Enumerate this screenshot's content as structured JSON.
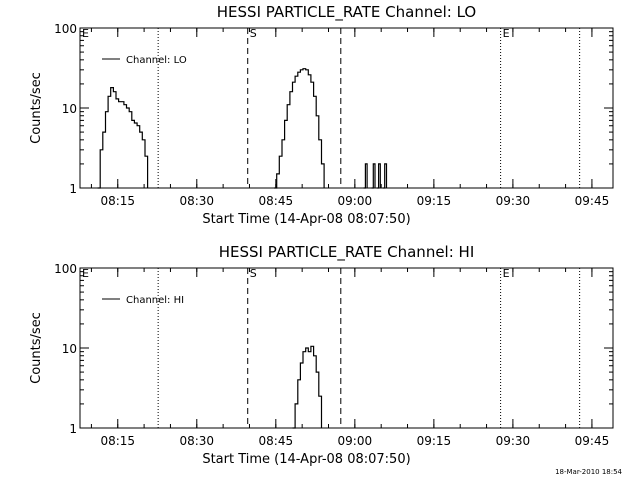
{
  "chart_data": [
    {
      "type": "line",
      "title": "HESSI PARTICLE_RATE Channel: LO",
      "xlabel": "Start Time (14-Apr-08 08:07:50)",
      "ylabel": "Counts/sec",
      "y_scale": "log",
      "ylim": [
        1,
        100
      ],
      "y_ticks": [
        "1",
        "10",
        "100"
      ],
      "x_ticks": [
        "08:15",
        "08:30",
        "08:45",
        "09:00",
        "09:15",
        "09:30",
        "09:45"
      ],
      "grid": false,
      "legend": {
        "position": "top-left",
        "entries": [
          "Channel: LO"
        ]
      },
      "markers": [
        {
          "label": "E",
          "time": "08:07:50",
          "style": "none"
        },
        {
          "label": "",
          "time": "08:22:40",
          "style": "dotted"
        },
        {
          "label": "S",
          "time": "08:39:40",
          "style": "dashed"
        },
        {
          "label": "",
          "time": "08:57:20",
          "style": "dashed"
        },
        {
          "label": "E",
          "time": "09:27:40",
          "style": "dotted"
        },
        {
          "label": "",
          "time": "09:42:40",
          "style": "dotted"
        }
      ],
      "series": [
        {
          "name": "Channel: LO",
          "segments": [
            [
              {
                "x": "08:11:10",
                "y": 1
              },
              {
                "x": "08:11:40",
                "y": 3
              },
              {
                "x": "08:12:10",
                "y": 5
              },
              {
                "x": "08:12:40",
                "y": 9
              },
              {
                "x": "08:13:10",
                "y": 14
              },
              {
                "x": "08:13:40",
                "y": 18
              },
              {
                "x": "08:14:10",
                "y": 16
              },
              {
                "x": "08:14:40",
                "y": 13
              },
              {
                "x": "08:15:10",
                "y": 12
              },
              {
                "x": "08:15:40",
                "y": 12
              },
              {
                "x": "08:16:10",
                "y": 11
              },
              {
                "x": "08:16:40",
                "y": 10
              },
              {
                "x": "08:17:10",
                "y": 9
              },
              {
                "x": "08:17:40",
                "y": 7
              },
              {
                "x": "08:18:10",
                "y": 6.5
              },
              {
                "x": "08:18:40",
                "y": 6
              },
              {
                "x": "08:19:10",
                "y": 5
              },
              {
                "x": "08:19:40",
                "y": 4
              },
              {
                "x": "08:20:10",
                "y": 2.5
              },
              {
                "x": "08:20:40",
                "y": 1
              }
            ],
            [
              {
                "x": "08:44:40",
                "y": 1
              },
              {
                "x": "08:45:10",
                "y": 1.5
              },
              {
                "x": "08:45:40",
                "y": 2.5
              },
              {
                "x": "08:46:10",
                "y": 4
              },
              {
                "x": "08:46:40",
                "y": 7
              },
              {
                "x": "08:47:10",
                "y": 11
              },
              {
                "x": "08:47:40",
                "y": 16
              },
              {
                "x": "08:48:10",
                "y": 21
              },
              {
                "x": "08:48:40",
                "y": 25
              },
              {
                "x": "08:49:10",
                "y": 28
              },
              {
                "x": "08:49:40",
                "y": 30
              },
              {
                "x": "08:50:10",
                "y": 31
              },
              {
                "x": "08:50:40",
                "y": 30
              },
              {
                "x": "08:51:10",
                "y": 26
              },
              {
                "x": "08:51:40",
                "y": 21
              },
              {
                "x": "08:52:10",
                "y": 14
              },
              {
                "x": "08:52:40",
                "y": 8
              },
              {
                "x": "08:53:10",
                "y": 4
              },
              {
                "x": "08:53:40",
                "y": 2
              },
              {
                "x": "08:54:10",
                "y": 1
              }
            ],
            [
              {
                "x": "09:01:40",
                "y": 1
              },
              {
                "x": "09:02:00",
                "y": 2
              },
              {
                "x": "09:02:20",
                "y": 1
              }
            ],
            [
              {
                "x": "09:03:10",
                "y": 1
              },
              {
                "x": "09:03:30",
                "y": 2
              },
              {
                "x": "09:03:50",
                "y": 1
              }
            ],
            [
              {
                "x": "09:04:10",
                "y": 1
              },
              {
                "x": "09:04:30",
                "y": 2
              },
              {
                "x": "09:04:50",
                "y": 1
              }
            ],
            [
              {
                "x": "09:05:20",
                "y": 1
              },
              {
                "x": "09:05:40",
                "y": 2
              },
              {
                "x": "09:06:00",
                "y": 1
              }
            ]
          ]
        }
      ]
    },
    {
      "type": "line",
      "title": "HESSI PARTICLE_RATE Channel: HI",
      "xlabel": "Start Time (14-Apr-08 08:07:50)",
      "ylabel": "Counts/sec",
      "y_scale": "log",
      "ylim": [
        1,
        100
      ],
      "y_ticks": [
        "1",
        "10",
        "100"
      ],
      "x_ticks": [
        "08:15",
        "08:30",
        "08:45",
        "09:00",
        "09:15",
        "09:30",
        "09:45"
      ],
      "grid": false,
      "legend": {
        "position": "top-left",
        "entries": [
          "Channel: HI"
        ]
      },
      "markers": [
        {
          "label": "E",
          "time": "08:07:50",
          "style": "none"
        },
        {
          "label": "",
          "time": "08:22:40",
          "style": "dotted"
        },
        {
          "label": "S",
          "time": "08:39:40",
          "style": "dashed"
        },
        {
          "label": "",
          "time": "08:57:20",
          "style": "dashed"
        },
        {
          "label": "E",
          "time": "09:27:40",
          "style": "dotted"
        },
        {
          "label": "",
          "time": "09:42:40",
          "style": "dotted"
        }
      ],
      "series": [
        {
          "name": "Channel: HI",
          "segments": [
            [
              {
                "x": "08:48:10",
                "y": 1
              },
              {
                "x": "08:48:40",
                "y": 2
              },
              {
                "x": "08:49:10",
                "y": 4
              },
              {
                "x": "08:49:40",
                "y": 6.5
              },
              {
                "x": "08:50:10",
                "y": 9
              },
              {
                "x": "08:50:40",
                "y": 10
              },
              {
                "x": "08:51:10",
                "y": 9
              },
              {
                "x": "08:51:40",
                "y": 10.5
              },
              {
                "x": "08:52:10",
                "y": 8
              },
              {
                "x": "08:52:40",
                "y": 5
              },
              {
                "x": "08:53:10",
                "y": 2.5
              },
              {
                "x": "08:53:40",
                "y": 1
              }
            ]
          ]
        }
      ]
    }
  ],
  "footer": {
    "timestamp": "18-Mar-2010 18:54"
  }
}
